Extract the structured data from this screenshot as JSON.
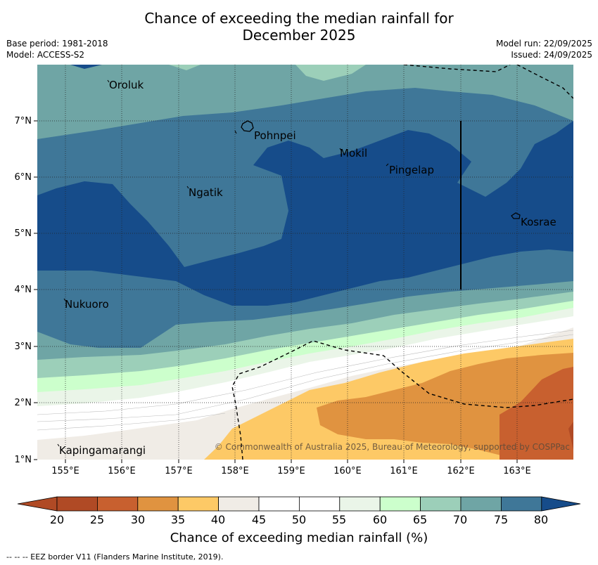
{
  "header": {
    "title_line1": "Chance of exceeding the median rainfall for",
    "title_line2": "December 2025",
    "base_period": "Base period: 1981-2018",
    "model": "Model: ACCESS-S2",
    "model_run": "Model run: 22/09/2025",
    "issued": "Issued: 24/09/2025"
  },
  "map": {
    "lon_ticks": [
      "155°E",
      "156°E",
      "157°E",
      "158°E",
      "159°E",
      "160°E",
      "161°E",
      "162°E",
      "163°E"
    ],
    "lat_ticks": [
      "1°N",
      "2°N",
      "3°N",
      "4°N",
      "5°N",
      "6°N",
      "7°N"
    ],
    "places": [
      {
        "name": "Oroluk"
      },
      {
        "name": "Pohnpei"
      },
      {
        "name": "Mokil"
      },
      {
        "name": "Pingelap"
      },
      {
        "name": "Ngatik"
      },
      {
        "name": "Kosrae"
      },
      {
        "name": "Nukuoro"
      },
      {
        "name": "Kapingamarangi"
      }
    ],
    "copyright": "© Commonwealth of Australia 2025, Bureau of Meteorology, supported by COSPPac"
  },
  "colorbar": {
    "levels": [
      "20",
      "25",
      "30",
      "35",
      "40",
      "45",
      "50",
      "55",
      "60",
      "65",
      "70",
      "75",
      "80"
    ],
    "colors": [
      "#b04a25",
      "#c8602f",
      "#e09340",
      "#fdc966",
      "#f0ece6",
      "#ffffff",
      "#ffffff",
      "#eaf5e8",
      "#ccffcc",
      "#9ccfb9",
      "#6fa5a5",
      "#3f7798",
      "#164c8a"
    ],
    "title": "Chance of exceeding median rainfall (%)"
  },
  "footnote": "--  --  -- EEZ border V11 (Flanders Marine Institute, 2019)."
}
